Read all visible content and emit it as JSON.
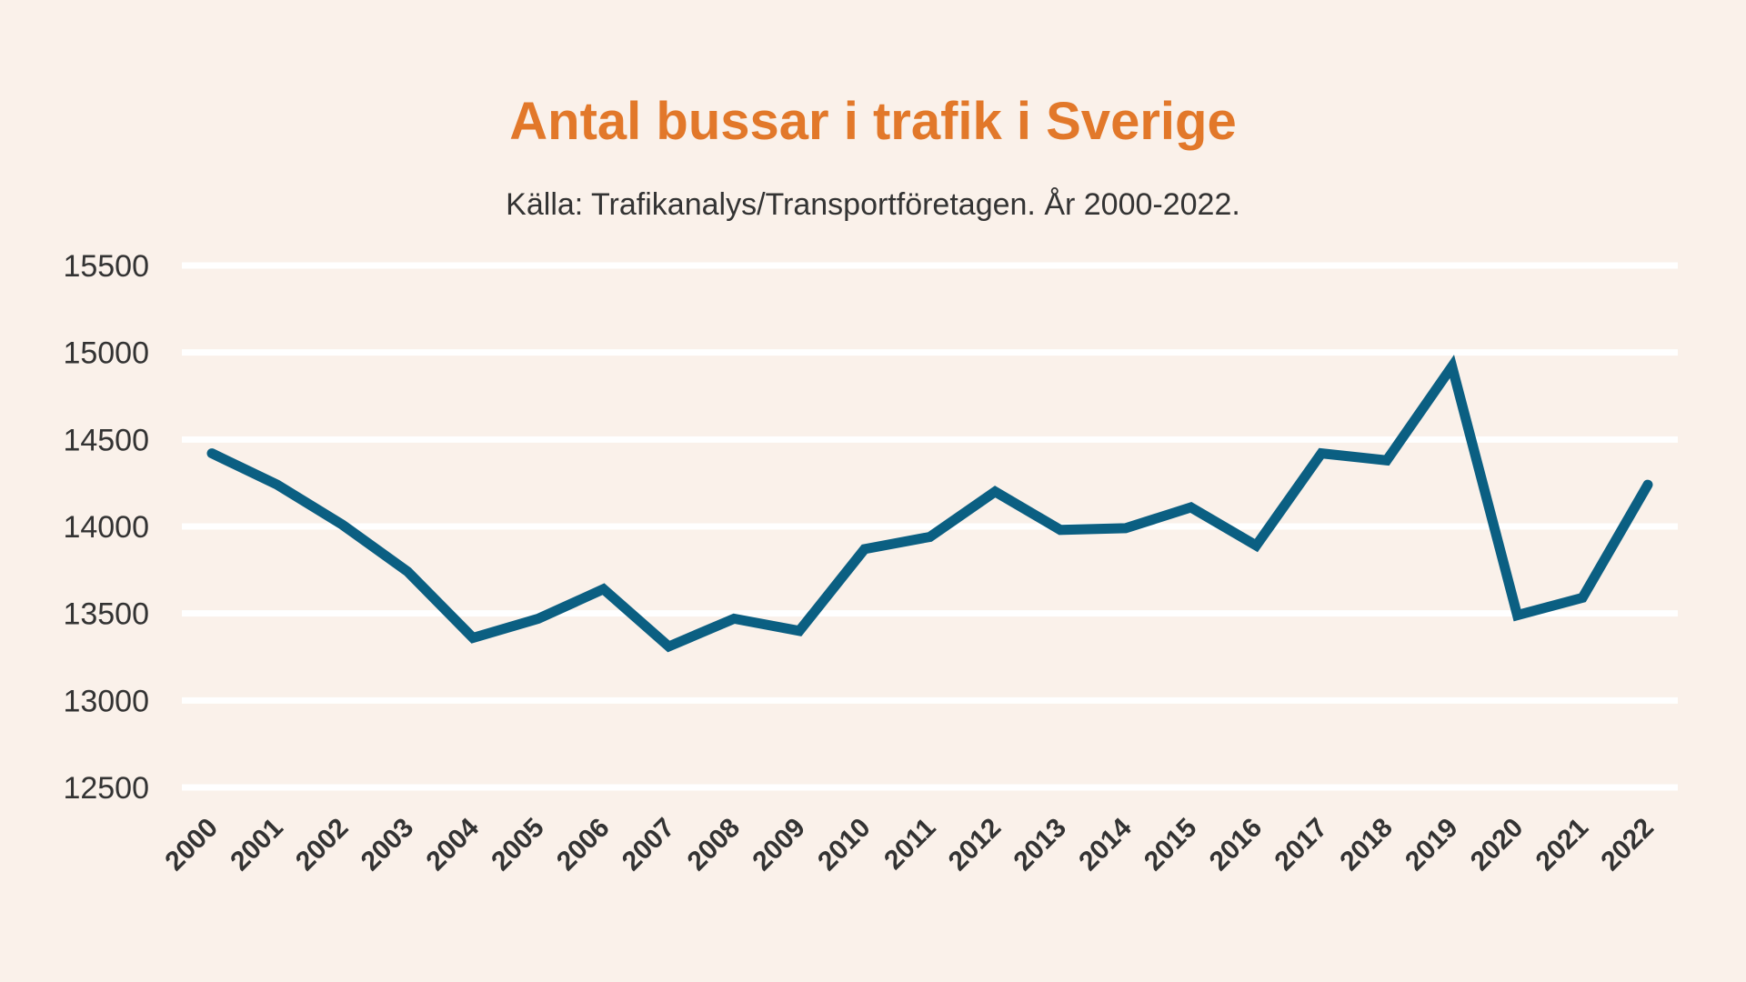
{
  "colors": {
    "background": "#faf1ea",
    "title": "#e2782a",
    "line": "#0b5f82",
    "grid": "#ffffff",
    "text": "#333333"
  },
  "chart_data": {
    "type": "line",
    "title": "Antal bussar i trafik i Sverige",
    "subtitle": "Källa: Trafikanalys/Transportföretagen. År 2000-2022.",
    "xlabel": "",
    "ylabel": "",
    "x": [
      "2000",
      "2001",
      "2002",
      "2003",
      "2004",
      "2005",
      "2006",
      "2007",
      "2008",
      "2009",
      "2010",
      "2011",
      "2012",
      "2013",
      "2014",
      "2015",
      "2016",
      "2017",
      "2018",
      "2019",
      "2020",
      "2021",
      "2022"
    ],
    "series": [
      {
        "values": [
          14420,
          14240,
          14010,
          13740,
          13360,
          13470,
          13640,
          13310,
          13470,
          13400,
          13870,
          13940,
          14200,
          13980,
          13990,
          14110,
          13890,
          14420,
          14380,
          14920,
          13490,
          13590,
          14240
        ]
      }
    ],
    "ylim": [
      12500,
      15500
    ],
    "yticks": [
      15500,
      15000,
      14500,
      14000,
      13500,
      13000,
      12500
    ],
    "grid": true,
    "legend": "none"
  }
}
